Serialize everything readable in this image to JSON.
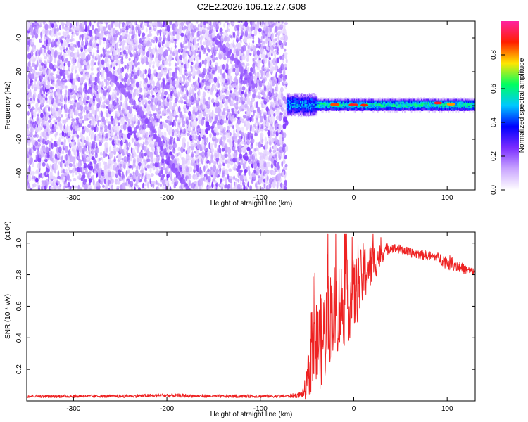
{
  "figure": {
    "title": "C2E2.2026.106.12.27.G08"
  },
  "chart_data": [
    {
      "type": "heatmap",
      "xlabel": "Height of straight line (km)",
      "ylabel": "Frequency (Hz)",
      "xlim": [
        -350,
        130
      ],
      "ylim": [
        -50,
        50
      ],
      "x_ticks": [
        -300,
        -200,
        -100,
        0,
        100
      ],
      "y_ticks": [
        -40,
        -20,
        0,
        20,
        40
      ],
      "colorbar": {
        "label": "Normalized spectral amplitude",
        "range": [
          0.0,
          1.0
        ],
        "ticks": [
          0.0,
          0.2,
          0.4,
          0.6,
          0.8
        ],
        "tick_labels": [
          "0.0",
          "0.2",
          "0.4",
          "0.6",
          "0.8"
        ],
        "colormap": [
          "#ffffff",
          "#c9a5ff",
          "#7a2cff",
          "#0000ff",
          "#00c8ff",
          "#00ff60",
          "#ffe600",
          "#ff1f00",
          "#ff20a0"
        ]
      },
      "noise_region_x": [
        -350,
        -72
      ],
      "signal_band": {
        "x_range": [
          -72,
          130
        ],
        "center_frequency": 0,
        "strong_points": [
          {
            "x": -20,
            "y": 0.6,
            "amplitude": 0.85
          },
          {
            "x": 0,
            "y": 0.4,
            "amplitude": 0.9
          },
          {
            "x": 12,
            "y": 0.2,
            "amplitude": 0.88
          },
          {
            "x": 90,
            "y": 1.5,
            "amplitude": 0.9
          },
          {
            "x": 105,
            "y": 0.8,
            "amplitude": 0.8
          }
        ]
      },
      "streaks": [
        {
          "points": [
            [
              -265,
              22
            ],
            [
              -240,
              5
            ],
            [
              -215,
              -15
            ],
            [
              -195,
              -35
            ],
            [
              -175,
              -52
            ]
          ]
        },
        {
          "points": [
            [
              -150,
              40
            ],
            [
              -125,
              25
            ],
            [
              -105,
              10
            ]
          ]
        }
      ]
    },
    {
      "type": "line",
      "xlabel": "Height of straight line (km)",
      "ylabel": "SNR (10 * v/v)",
      "y_multiplier_label": "(x10⁴)",
      "xlim": [
        -350,
        130
      ],
      "ylim": [
        0,
        1.07
      ],
      "x_ticks": [
        -300,
        -200,
        -100,
        0,
        100
      ],
      "y_ticks": [
        0.2,
        0.4,
        0.6,
        0.8,
        1.0
      ],
      "y_tick_labels": [
        "0.2",
        "0.4",
        "0.6",
        "0.8",
        "1.0"
      ],
      "series": [
        {
          "color": "#ee2222",
          "x": [
            -350,
            -300,
            -250,
            -200,
            -150,
            -100,
            -70,
            -55,
            -50,
            -45,
            -40,
            -35,
            -30,
            -25,
            -20,
            -15,
            -10,
            -5,
            0,
            5,
            10,
            15,
            20,
            25,
            30,
            35,
            40,
            50,
            60,
            70,
            80,
            90,
            100,
            110,
            120,
            130
          ],
          "y": [
            0.03,
            0.03,
            0.03,
            0.035,
            0.03,
            0.03,
            0.03,
            0.04,
            0.1,
            0.28,
            0.35,
            0.38,
            0.45,
            0.55,
            0.58,
            0.6,
            0.62,
            0.64,
            0.66,
            0.72,
            0.8,
            0.84,
            0.86,
            0.9,
            0.93,
            0.96,
            0.97,
            0.96,
            0.94,
            0.93,
            0.92,
            0.91,
            0.88,
            0.86,
            0.83,
            0.82
          ],
          "noise_amplitude": [
            0.01,
            0.01,
            0.01,
            0.012,
            0.01,
            0.01,
            0.01,
            0.02,
            0.1,
            0.22,
            0.3,
            0.3,
            0.32,
            0.3,
            0.3,
            0.3,
            0.28,
            0.26,
            0.24,
            0.22,
            0.2,
            0.16,
            0.14,
            0.1,
            0.06,
            0.04,
            0.03,
            0.03,
            0.03,
            0.03,
            0.03,
            0.03,
            0.05,
            0.04,
            0.03,
            0.02
          ]
        }
      ]
    }
  ]
}
